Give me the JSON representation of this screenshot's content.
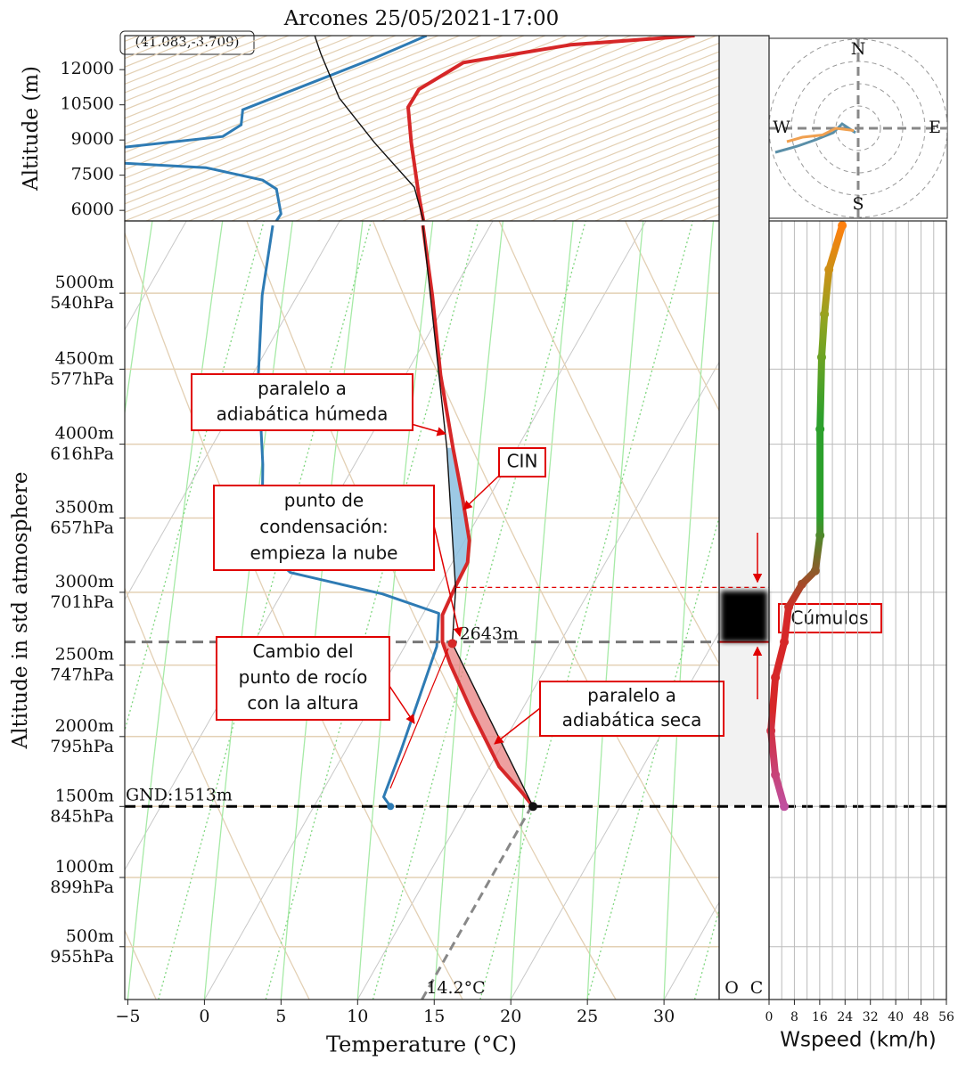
{
  "chart_data": [
    {
      "type": "skewt",
      "title": "Arcones 25/05/2021-17:00",
      "location": "(41.083,-3.709)",
      "xlabel": "Temperature (°C)",
      "ylabel": "Altitude in std atmosphere",
      "xlim": [
        -5.2,
        33.6
      ],
      "xticks": [
        {
          "value": -5,
          "label": "−5"
        },
        0,
        5,
        10,
        15,
        20,
        25,
        30
      ],
      "ylim": [
        1000,
        507
      ],
      "yscale": "log",
      "yticks": [
        {
          "value": 955,
          "label": "955hPa",
          "altitude": "500m"
        },
        {
          "value": 899,
          "label": "899hPa",
          "altitude": "1000m"
        },
        {
          "value": 845,
          "label": "845hPa",
          "altitude": "1500m"
        },
        {
          "value": 795,
          "label": "795hPa",
          "altitude": "2000m"
        },
        {
          "value": 747,
          "label": "747hPa",
          "altitude": "2500m"
        },
        {
          "value": 701,
          "label": "701hPa",
          "altitude": "3000m"
        },
        {
          "value": 657,
          "label": "657hPa",
          "altitude": "3500m"
        },
        {
          "value": 616,
          "label": "616hPa",
          "altitude": "4000m"
        },
        {
          "value": 577,
          "label": "577hPa",
          "altitude": "4500m"
        },
        {
          "value": 540,
          "label": "540hPa",
          "altitude": "5000m"
        }
      ],
      "series": [
        {
          "color": "#d62728",
          "p": [
            845,
            835,
            816,
            779,
            746,
            732,
            715,
            698,
            683,
            670,
            647,
            618,
            580,
            541,
            509
          ],
          "values": [
            14.3,
            13.1,
            10.6,
            6.9,
            3.6,
            2.3,
            1.3,
            1.1,
            1.0,
            0.3,
            -1.6,
            -4.2,
            -7.7,
            -11.2,
            -14.4
          ]
        },
        {
          "color": "#2e7bb4",
          "p": [
            845,
            838,
            804,
            735,
            714,
            702,
            689,
            672,
            647,
            627,
            580,
            541,
            509
          ],
          "values": [
            5.0,
            4.2,
            3.6,
            2.1,
            1.0,
            -3.4,
            -10.2,
            -13.3,
            -14.7,
            -16.0,
            -19.6,
            -22.3,
            -24.2
          ]
        },
        {
          "color": "#111111",
          "p": [
            845,
            733,
            699,
            618,
            509
          ],
          "values": [
            14.3,
            3.0,
            1.2,
            -4.6,
            -14.4
          ]
        }
      ],
      "ground": {
        "value": 845,
        "label": "GND:1513m"
      },
      "lcl": {
        "value": 732,
        "label": "2643m"
      },
      "surface_temperature": {
        "value": 14.2,
        "label": "14.2°C"
      },
      "annotations": [
        {
          "lines": [
            "paralelo a",
            "adiabática húmeda"
          ]
        },
        {
          "lines": [
            "CIN"
          ]
        },
        {
          "lines": [
            "punto de",
            "condensación:",
            "empieza la nube"
          ]
        },
        {
          "lines": [
            "Cambio del",
            "punto de rocío",
            "con la altura"
          ]
        },
        {
          "lines": [
            "paralelo a",
            "adiabática seca"
          ]
        }
      ]
    },
    {
      "type": "line",
      "ylabel": "Altitude (m)",
      "xlim": [
        -5.2,
        33.6
      ],
      "ylim": [
        5550,
        13450
      ],
      "yticks": [
        {
          "value": 6000,
          "label": "6000"
        },
        {
          "value": 7500,
          "label": "7500"
        },
        {
          "value": 9000,
          "label": "9000"
        },
        {
          "value": 10500,
          "label": "10500"
        },
        {
          "value": 12000,
          "label": "12000"
        }
      ],
      "series": [
        {
          "color": "#d62728",
          "y": [
            5550,
            6610,
            8890,
            10400,
            11160,
            12300,
            13060,
            13450
          ],
          "values": [
            14.3,
            14.0,
            13.5,
            13.3,
            14.0,
            16.9,
            23.9,
            32.0
          ]
        },
        {
          "color": "#2e7bb4",
          "y": [
            5550,
            5850,
            6910,
            7290,
            7820,
            8010,
            8350,
            8700,
            9150,
            9650,
            10290,
            11160,
            12490,
            13140,
            13450
          ],
          "values": [
            4.7,
            5.0,
            4.7,
            3.8,
            0.1,
            -5.2,
            null,
            -5.2,
            1.2,
            2.4,
            2.5,
            5.9,
            11.1,
            13.4,
            14.5
          ]
        },
        {
          "color": "#111111",
          "y": [
            5550,
            6990,
            8890,
            10790,
            12680,
            13450
          ],
          "values": [
            14.3,
            13.7,
            11.1,
            8.8,
            7.6,
            7.2
          ]
        }
      ]
    },
    {
      "type": "cloud",
      "categories": [
        "O",
        "C"
      ],
      "base": 732,
      "top": 698,
      "color": "#000000",
      "label": "Cúmulos"
    },
    {
      "type": "line",
      "xlabel": "Wspeed (km/h)",
      "xlim": [
        0,
        56
      ],
      "xticks": [
        0,
        8,
        16,
        24,
        32,
        40,
        48,
        56
      ],
      "colors": [
        "#c050a0",
        "#d62728",
        "#d62728",
        "#2ca02c",
        "#2ca02c",
        "#8fa520",
        "#ff7f0e"
      ],
      "series": [
        {
          "p": [
            845,
            822,
            791,
            755,
            732,
            710,
            696,
            688,
            667,
            608,
            571,
            550,
            529,
            509
          ],
          "values": [
            4.8,
            2.0,
            0.6,
            2.0,
            4.8,
            6.2,
            10.4,
            14.6,
            16.1,
            16.1,
            16.6,
            17.5,
            18.9,
            23.1
          ]
        }
      ]
    },
    {
      "type": "polar",
      "labels": [
        "N",
        "E",
        "S",
        "W"
      ],
      "rlim": [
        0,
        40
      ],
      "rticks": [
        10,
        20,
        30,
        40
      ],
      "series": [
        {
          "color": "#5a8fa8",
          "u": [
            -1.2,
            -7.2,
            -11.2,
            -19.2,
            -27.2,
            -37.2
          ],
          "v": [
            -2,
            2,
            -2,
            -5.2,
            -8,
            -10.8
          ]
        },
        {
          "color": "#f0a050",
          "u": [
            -2,
            -10,
            -16,
            -25,
            -32
          ],
          "v": [
            -1,
            0,
            -3,
            -4,
            -6
          ]
        }
      ]
    }
  ]
}
